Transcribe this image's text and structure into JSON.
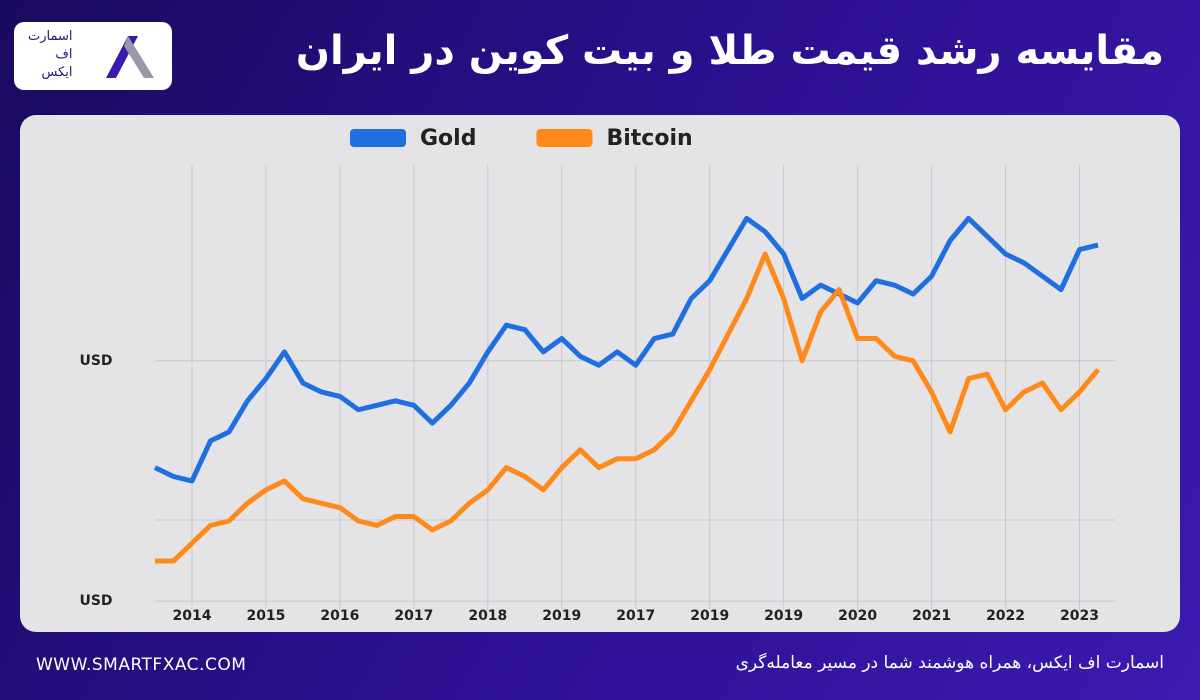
{
  "header": {
    "title": "مقایسه رشد قیمت طلا و بیت کوین در ایران"
  },
  "logo": {
    "lines": [
      "اسمارت",
      "اف",
      "ایکس"
    ]
  },
  "footer": {
    "url": "WWW.SMARTFXAC.COM",
    "tagline": "اسمارت اف ایکس، همراه هوشمند شما در مسیر معامله‌گری"
  },
  "chart_data": {
    "type": "line",
    "x": [
      0,
      1,
      2,
      3,
      4,
      5,
      6,
      7,
      8,
      9,
      10,
      11,
      12,
      13,
      14,
      15,
      16,
      17,
      18,
      19,
      20,
      21,
      22,
      23,
      24,
      25,
      26,
      27,
      28,
      29,
      30,
      31,
      32,
      33,
      34,
      35,
      36,
      37,
      38,
      39,
      40,
      41,
      42,
      43,
      44,
      45,
      46,
      47,
      48,
      49,
      50,
      51
    ],
    "series": [
      {
        "name": "Gold",
        "color": "#1f6fe0",
        "values": [
          32,
          30,
          29,
          38,
          40,
          47,
          52,
          58,
          51,
          49,
          48,
          45,
          46,
          47,
          46,
          42,
          46,
          51,
          58,
          64,
          63,
          58,
          61,
          57,
          55,
          58,
          55,
          61,
          62,
          70,
          74,
          81,
          88,
          85,
          80,
          70,
          73,
          71,
          69,
          74,
          73,
          71,
          75,
          83,
          88,
          84,
          80,
          78,
          75,
          72,
          81,
          82
        ]
      },
      {
        "name": "Bitcoin",
        "color": "#ff8a1c",
        "values": [
          11,
          11,
          15,
          19,
          20,
          24,
          27,
          29,
          25,
          24,
          23,
          20,
          19,
          21,
          21,
          18,
          20,
          24,
          27,
          32,
          30,
          27,
          32,
          36,
          32,
          34,
          34,
          36,
          40,
          47,
          54,
          62,
          70,
          80,
          70,
          56,
          67,
          72,
          61,
          61,
          57,
          56,
          49,
          40,
          52,
          53,
          45,
          49,
          51,
          45,
          49,
          54
        ]
      }
    ],
    "xlim": [
      0,
      51
    ],
    "xticks": [
      {
        "value": 2,
        "label": "2014"
      },
      {
        "value": 6,
        "label": "2015"
      },
      {
        "value": 10,
        "label": "2016"
      },
      {
        "value": 14,
        "label": "2017"
      },
      {
        "value": 18,
        "label": "2018"
      },
      {
        "value": 22,
        "label": "2019"
      },
      {
        "value": 26,
        "label": "2017"
      },
      {
        "value": 30,
        "label": "2019"
      },
      {
        "value": 34,
        "label": "2019"
      },
      {
        "value": 38,
        "label": "2020"
      },
      {
        "value": 42,
        "label": "2021"
      },
      {
        "value": 46,
        "label": "2022"
      },
      {
        "value": 50,
        "label": "2023"
      }
    ],
    "ylim": [
      0,
      100
    ],
    "yticks": [
      {
        "value": 2,
        "label": "USD"
      },
      {
        "value": 56,
        "label": "USD"
      }
    ],
    "grid": true,
    "legend": "top"
  }
}
